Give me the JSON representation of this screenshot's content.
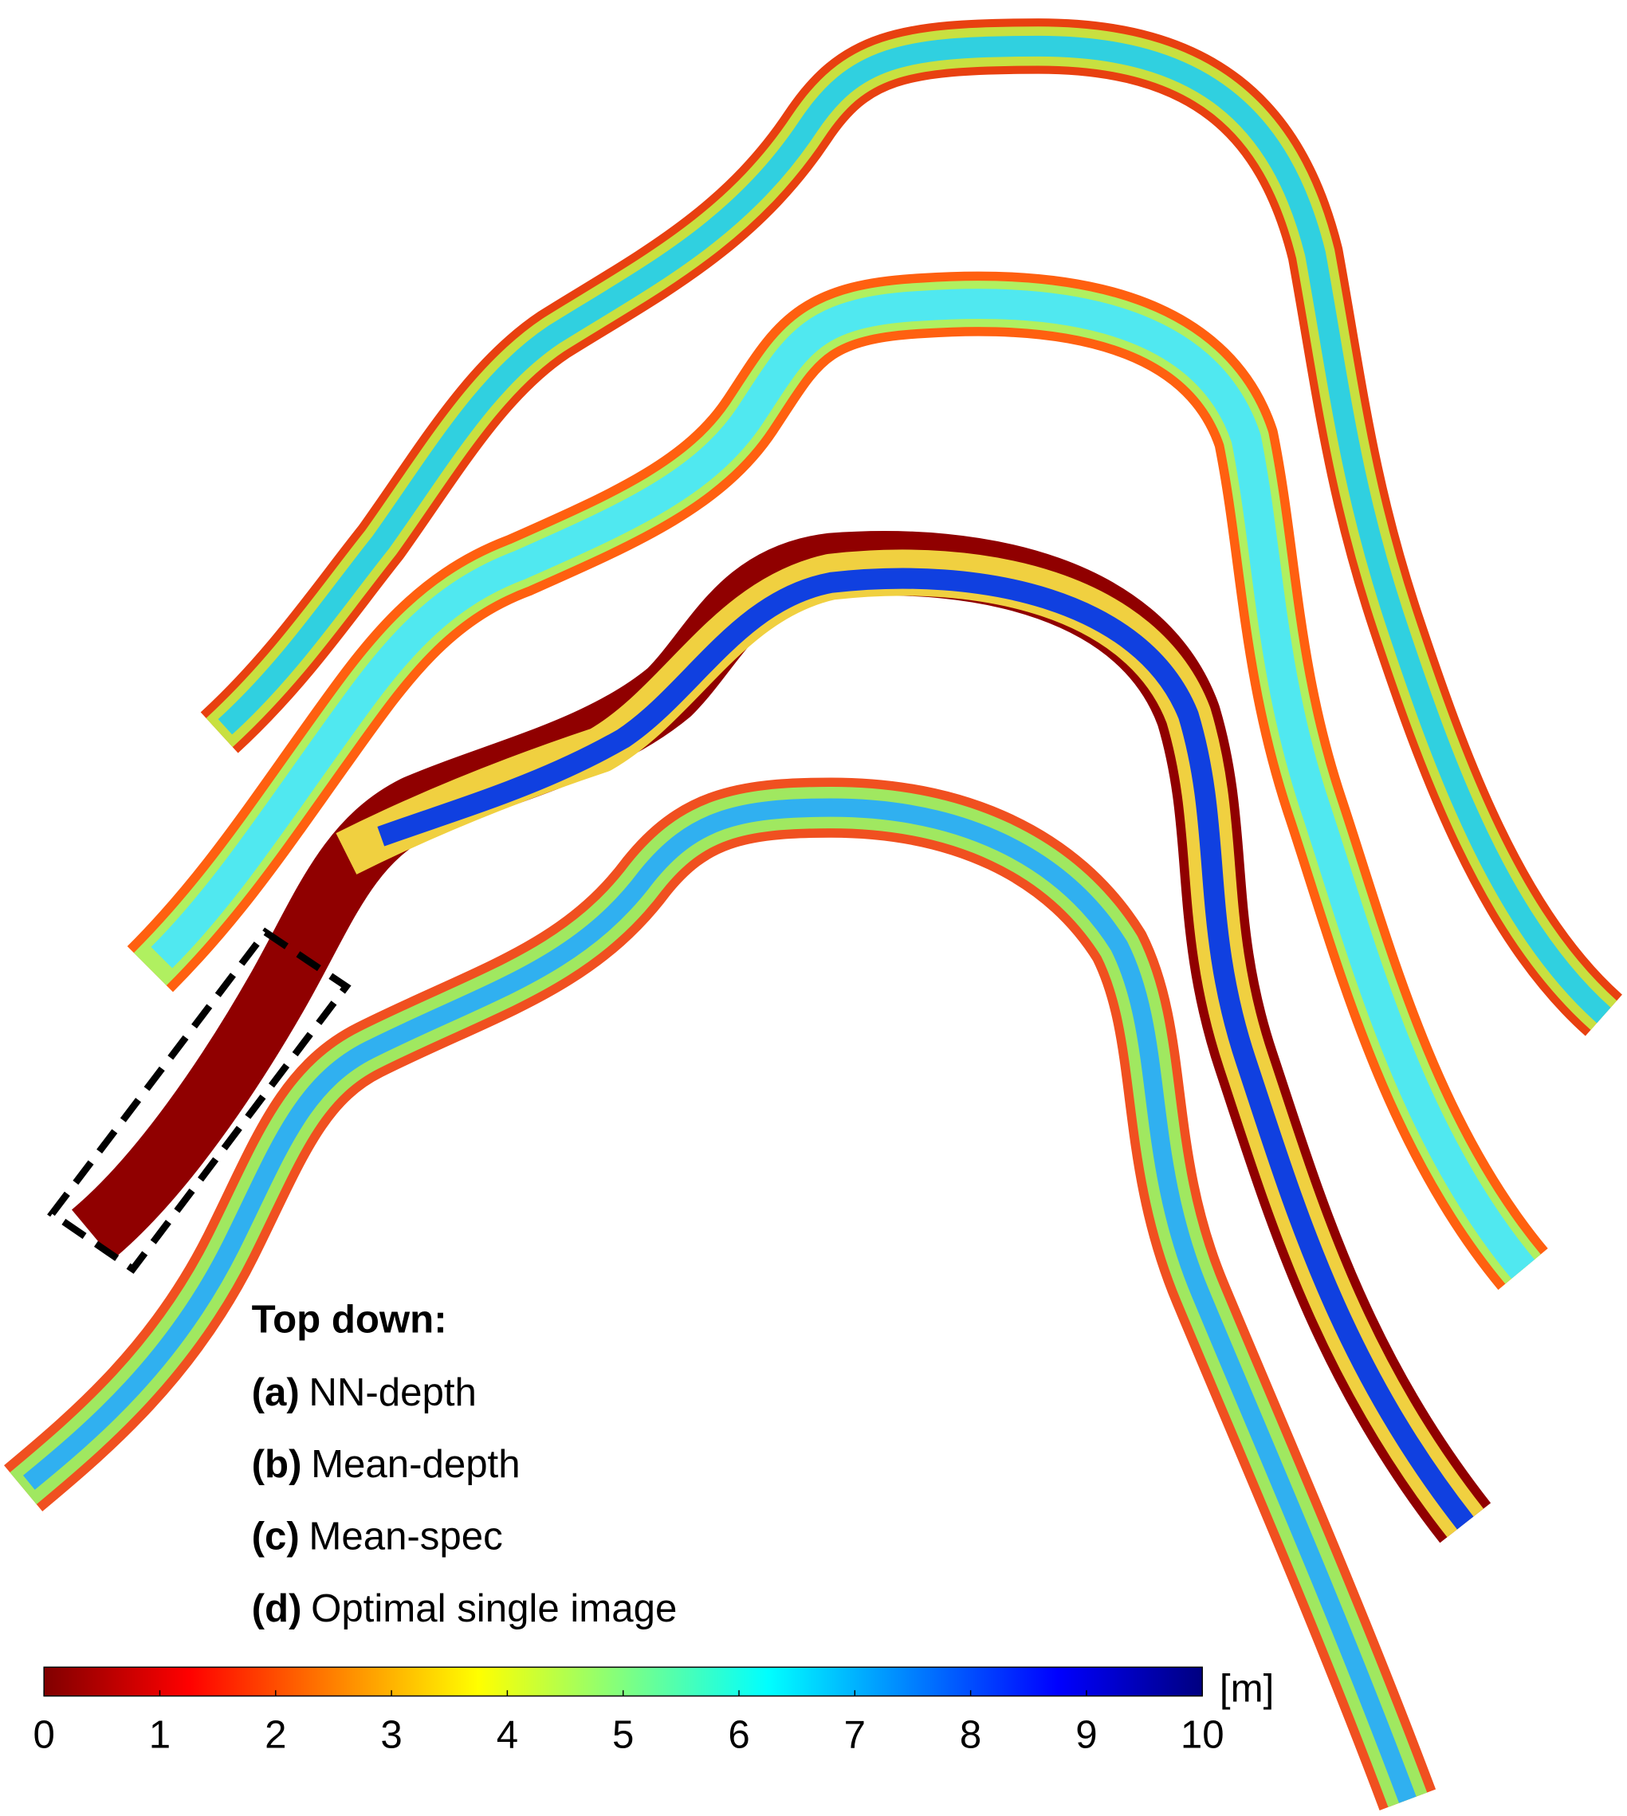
{
  "legend": {
    "heading": "Top down:",
    "items": [
      {
        "key": "(a)",
        "text": "NN-depth"
      },
      {
        "key": "(b)",
        "text": "Mean-depth"
      },
      {
        "key": "(c)",
        "text": "Mean-spec"
      },
      {
        "key": "(d)",
        "text": "Optimal single image"
      }
    ]
  },
  "colorbar": {
    "unit": "[m]",
    "range": [
      0,
      10
    ],
    "ticks": [
      0,
      1,
      2,
      3,
      4,
      5,
      6,
      7,
      8,
      9,
      10
    ],
    "colors": [
      "#800000",
      "#ff0000",
      "#ff8000",
      "#ffff00",
      "#80ff80",
      "#00ffff",
      "#0080ff",
      "#0000ff",
      "#000080"
    ]
  }
}
